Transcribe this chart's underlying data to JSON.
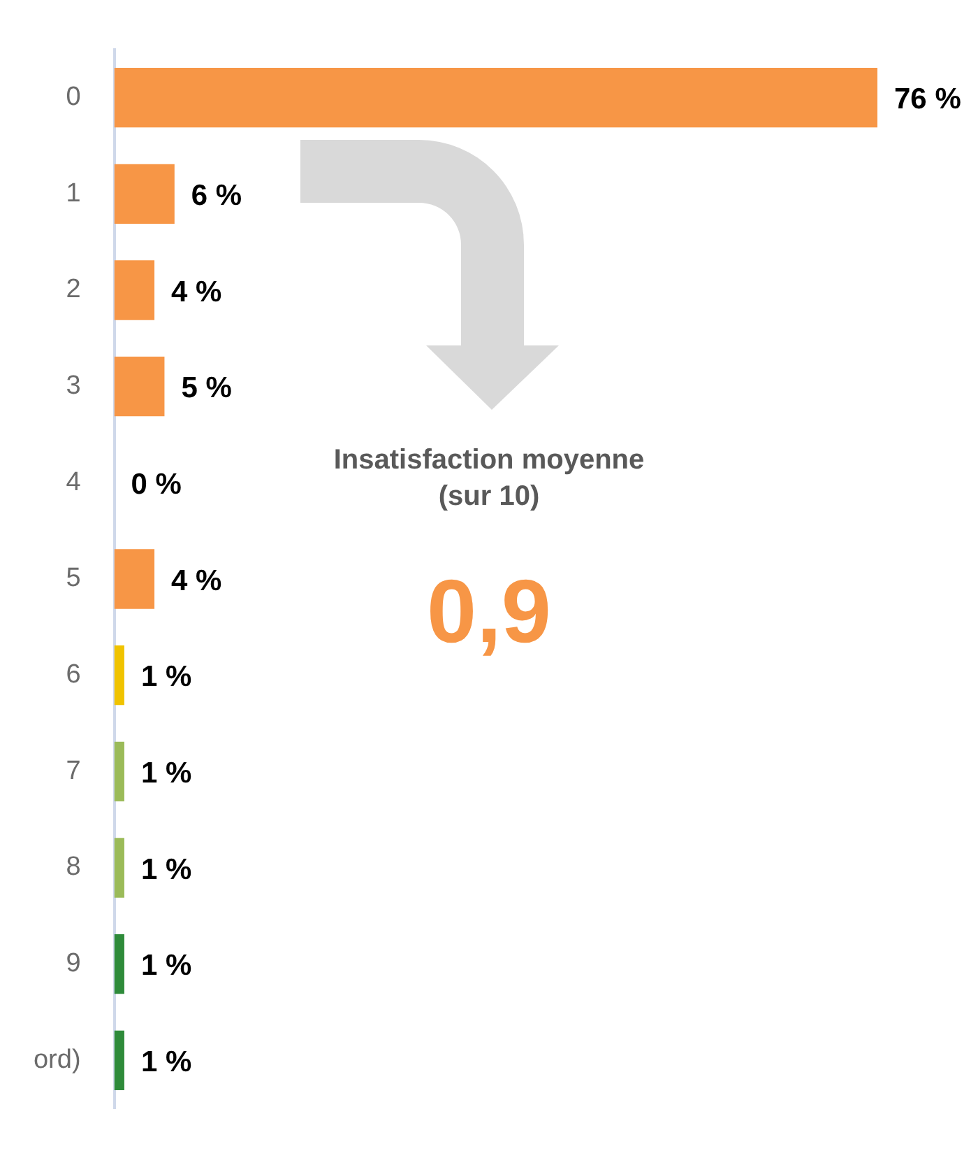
{
  "chart_data": {
    "type": "bar",
    "orientation": "horizontal",
    "categories": [
      "0",
      "1",
      "2",
      "3",
      "4",
      "5",
      "6",
      "7",
      "8",
      "9",
      "ord)"
    ],
    "values": [
      76,
      6,
      4,
      5,
      0,
      4,
      1,
      1,
      1,
      1,
      1
    ],
    "colors": [
      "#f79646",
      "#f79646",
      "#f79646",
      "#f79646",
      "#f79646",
      "#f79646",
      "#f0c300",
      "#9bbb59",
      "#9bbb59",
      "#2e8b3a",
      "#2e8b3a"
    ],
    "value_labels": [
      "76 %",
      "6 %",
      "4 %",
      "5 %",
      "0 %",
      "4 %",
      "1 %",
      "1 %",
      "1 %",
      "1 %",
      "1 %"
    ],
    "annotations": [
      "Insatisfaction moyenne\n(sur 10)",
      "0,9"
    ],
    "grid": false,
    "legend": false
  }
}
